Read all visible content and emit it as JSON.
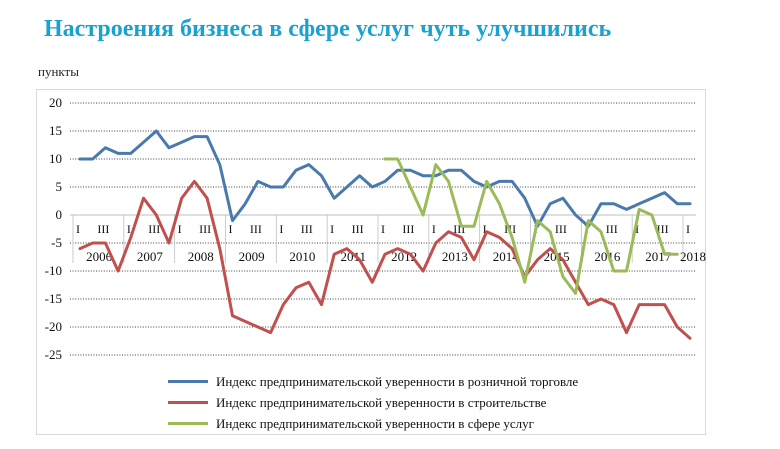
{
  "title": "Настроения бизнеса в сфере услуг чуть улучшились",
  "unit_label": "пункты",
  "chart_data": {
    "type": "line",
    "title": "Настроения бизнеса в сфере услуг чуть улучшились",
    "ylabel": "пункты",
    "ylim": [
      -25,
      20
    ],
    "yticks": [
      20,
      15,
      10,
      5,
      0,
      -5,
      -10,
      -15,
      -20,
      -25
    ],
    "grid": true,
    "legend_position": "bottom",
    "quarters": [
      "2006 I",
      "2006 II",
      "2006 III",
      "2006 IV",
      "2007 I",
      "2007 II",
      "2007 III",
      "2007 IV",
      "2008 I",
      "2008 II",
      "2008 III",
      "2008 IV",
      "2009 I",
      "2009 II",
      "2009 III",
      "2009 IV",
      "2010 I",
      "2010 II",
      "2010 III",
      "2010 IV",
      "2011 I",
      "2011 II",
      "2011 III",
      "2011 IV",
      "2012 I",
      "2012 II",
      "2012 III",
      "2012 IV",
      "2013 I",
      "2013 II",
      "2013 III",
      "2013 IV",
      "2014 I",
      "2014 II",
      "2014 III",
      "2014 IV",
      "2015 I",
      "2015 II",
      "2015 III",
      "2015 IV",
      "2016 I",
      "2016 II",
      "2016 III",
      "2016 IV",
      "2017 I",
      "2017 II",
      "2017 III",
      "2017 IV",
      "2018 I"
    ],
    "quarter_tick_labels": [
      {
        "label": "I",
        "index": 0
      },
      {
        "label": "III",
        "index": 2
      },
      {
        "label": "I",
        "index": 4
      },
      {
        "label": "III",
        "index": 6
      },
      {
        "label": "I",
        "index": 8
      },
      {
        "label": "III",
        "index": 10
      },
      {
        "label": "I",
        "index": 12
      },
      {
        "label": "III",
        "index": 14
      },
      {
        "label": "I",
        "index": 16
      },
      {
        "label": "III",
        "index": 18
      },
      {
        "label": "I",
        "index": 20
      },
      {
        "label": "III",
        "index": 22
      },
      {
        "label": "I",
        "index": 24
      },
      {
        "label": "III",
        "index": 26
      },
      {
        "label": "I",
        "index": 28
      },
      {
        "label": "III",
        "index": 30
      },
      {
        "label": "I",
        "index": 32
      },
      {
        "label": "III",
        "index": 34
      },
      {
        "label": "I",
        "index": 36
      },
      {
        "label": "III",
        "index": 38
      },
      {
        "label": "I",
        "index": 40
      },
      {
        "label": "III",
        "index": 42
      },
      {
        "label": "I",
        "index": 44
      },
      {
        "label": "III",
        "index": 46
      },
      {
        "label": "I",
        "index": 48
      }
    ],
    "years": [
      "2006",
      "2007",
      "2008",
      "2009",
      "2010",
      "2011",
      "2012",
      "2013",
      "2014",
      "2015",
      "2016",
      "2017",
      "2018"
    ],
    "series": [
      {
        "name": "Индекс предпринимательской уверенности в розничной торговле",
        "color": "#4a7aad",
        "start_index": 0,
        "values": [
          10,
          10,
          12,
          11,
          11,
          13,
          15,
          12,
          13,
          14,
          14,
          9,
          -1,
          2,
          6,
          5,
          5,
          8,
          9,
          7,
          3,
          5,
          7,
          5,
          6,
          8,
          8,
          7,
          7,
          8,
          8,
          6,
          5,
          6,
          6,
          3,
          -2,
          2,
          3,
          0,
          -2,
          2,
          2,
          1,
          2,
          3,
          4,
          2,
          2
        ]
      },
      {
        "name": "Индекс предпринимательской уверенности в строительстве",
        "color": "#c0504d",
        "start_index": 0,
        "values": [
          -6,
          -5,
          -5,
          -10,
          -4,
          3,
          0,
          -5,
          3,
          6,
          3,
          -6,
          -18,
          -19,
          -20,
          -21,
          -16,
          -13,
          -12,
          -16,
          -7,
          -6,
          -8,
          -12,
          -7,
          -6,
          -7,
          -10,
          -5,
          -3,
          -4,
          -8,
          -3,
          -4,
          -6,
          -11,
          -8,
          -6,
          -8,
          -12,
          -16,
          -15,
          -16,
          -21,
          -16,
          -16,
          -16,
          -20,
          -22
        ]
      },
      {
        "name": "Индекс предпринимательской уверенности в сфере услуг",
        "color": "#9bbb59",
        "start_index": 24,
        "values": [
          10,
          10,
          5,
          0,
          9,
          6,
          -2,
          -2,
          6,
          2,
          -4,
          -12,
          -1,
          -3,
          -11,
          -14,
          -1,
          -3,
          -10,
          -10,
          1,
          0,
          -7,
          -7
        ]
      }
    ]
  }
}
